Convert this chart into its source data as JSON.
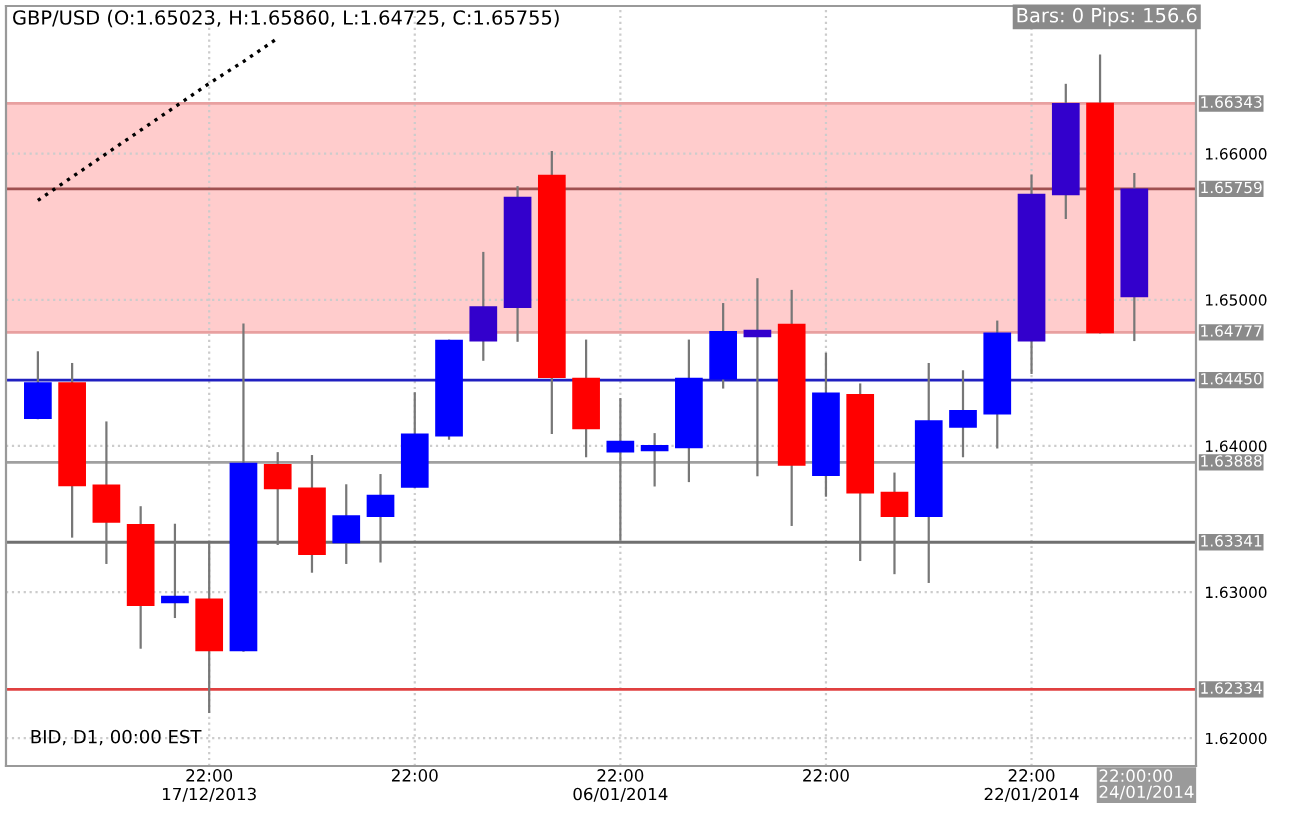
{
  "chart_data": {
    "type": "candlestick",
    "title": "GBP/USD (O:1.65023, H:1.65860, L:1.64725, C:1.65755)",
    "categories": [
      null,
      null,
      null,
      null,
      null,
      "22:00\n17/12/2013",
      null,
      null,
      null,
      null,
      null,
      "22:00",
      null,
      null,
      null,
      null,
      null,
      "22:00\n06/01/2014",
      null,
      null,
      null,
      null,
      null,
      "22:00",
      null,
      null,
      null,
      null,
      null,
      "22:00\n22/01/2014",
      null,
      null,
      null
    ],
    "ohlc": [
      [
        1.6419,
        1.6464,
        1.6419,
        1.6443
      ],
      [
        1.6443,
        1.6456,
        1.6338,
        1.6373
      ],
      [
        1.6373,
        1.6416,
        1.632,
        1.6348
      ],
      [
        1.6346,
        1.6358,
        1.6262,
        1.6291
      ],
      [
        1.6293,
        1.6346,
        1.6283,
        1.6297
      ],
      [
        1.6295,
        1.6333,
        1.6218,
        1.626
      ],
      [
        1.626,
        1.6483,
        1.626,
        1.6388
      ],
      [
        1.6387,
        1.6395,
        1.6333,
        1.6371
      ],
      [
        1.6371,
        1.6393,
        1.6314,
        1.6326
      ],
      [
        1.6334,
        1.6373,
        1.632,
        1.6352
      ],
      [
        1.6352,
        1.638,
        1.6321,
        1.6366
      ],
      [
        1.6372,
        1.6436,
        1.6372,
        1.6408
      ],
      [
        1.6407,
        1.6472,
        1.6405,
        1.6472
      ],
      [
        1.6472,
        1.6532,
        1.6459,
        1.6495
      ],
      [
        1.6495,
        1.6577,
        1.6472,
        1.657
      ],
      [
        1.6585,
        1.6601,
        1.6409,
        1.6447
      ],
      [
        1.6446,
        1.6472,
        1.6393,
        1.6412
      ],
      [
        1.6396,
        1.6432,
        1.6336,
        1.6403
      ],
      [
        1.6397,
        1.6408,
        1.6373,
        1.64
      ],
      [
        1.6399,
        1.6472,
        1.6376,
        1.6446
      ],
      [
        1.6446,
        1.6497,
        1.644,
        1.6478
      ],
      [
        1.6475,
        1.6514,
        1.638,
        1.6479
      ],
      [
        1.6483,
        1.6506,
        1.6346,
        1.6387
      ],
      [
        1.638,
        1.6463,
        1.6366,
        1.6436
      ],
      [
        1.6435,
        1.6442,
        1.6322,
        1.6368
      ],
      [
        1.6368,
        1.6381,
        1.6313,
        1.6352
      ],
      [
        1.6352,
        1.6456,
        1.6307,
        1.6417
      ],
      [
        1.6413,
        1.6451,
        1.6393,
        1.6424
      ],
      [
        1.6422,
        1.6485,
        1.6399,
        1.6477
      ],
      [
        1.6472,
        1.6585,
        1.645,
        1.6572
      ],
      [
        1.6572,
        1.6647,
        1.6556,
        1.6634
      ],
      [
        1.66343,
        1.6667,
        1.64777,
        1.64777
      ],
      [
        1.65023,
        1.6586,
        1.64725,
        1.65755
      ]
    ],
    "colors": [
      "#0000ff",
      "#ff0000",
      "#ff0000",
      "#ff0000",
      "#0000ff",
      "#ff0000",
      "#0000ff",
      "#ff0000",
      "#ff0000",
      "#0000ff",
      "#0000ff",
      "#0000ff",
      "#0000ff",
      "#3300cc",
      "#3300cc",
      "#ff0000",
      "#ff0000",
      "#0000ff",
      "#0000ff",
      "#0000ff",
      "#0000ff",
      "#3300cc",
      "#ff0000",
      "#0000ff",
      "#ff0000",
      "#ff0000",
      "#0000ff",
      "#0000ff",
      "#0000ff",
      "#3300cc",
      "#3300cc",
      "#ff0000",
      "#3300cc"
    ],
    "series": [
      {
        "type": "line",
        "values": [
          1.6568,
          1.6584,
          1.66,
          1.6616,
          1.6632,
          1.6648,
          1.6663,
          1.6679,
          null,
          null,
          null,
          null,
          null,
          null,
          null,
          null,
          null,
          null,
          null,
          null,
          null,
          null,
          null,
          null,
          null,
          null,
          null,
          null,
          null,
          null,
          null,
          null,
          null
        ],
        "color": "#000000",
        "line_style": "dotted"
      }
    ],
    "ylim": [
      1.6181,
      1.6701
    ],
    "yticks": [
      {
        "value": 1.62,
        "label": "1.62000"
      },
      {
        "value": 1.63,
        "label": "1.63000"
      },
      {
        "value": 1.64,
        "label": "1.64000"
      },
      {
        "value": 1.65,
        "label": "1.65000"
      },
      {
        "value": 1.66,
        "label": "1.66000"
      }
    ],
    "bands": [
      {
        "axis": "y",
        "from": 1.64777,
        "to": 1.66343,
        "color": "#ffcccc"
      }
    ],
    "ref_lines": [
      {
        "axis": "y",
        "value": 1.66343,
        "label": "1.66343",
        "color": "#e8a0a0"
      },
      {
        "axis": "y",
        "value": 1.65759,
        "label": "1.65759",
        "color": "#a05050"
      },
      {
        "axis": "y",
        "value": 1.64777,
        "label": "1.64777",
        "color": "#e8a0a0"
      },
      {
        "axis": "y",
        "value": 1.6445,
        "label": "1.64450",
        "color": "#2020c0"
      },
      {
        "axis": "y",
        "value": 1.63888,
        "label": "1.63888",
        "color": "#a0a0a0"
      },
      {
        "axis": "y",
        "value": 1.63341,
        "label": "1.63341",
        "color": "#707070"
      },
      {
        "axis": "y",
        "value": 1.62334,
        "label": "1.62334",
        "color": "#e04040"
      }
    ],
    "annotations": [
      "Bars: 0 Pips: 156.6",
      "BID, D1, 00:00 EST",
      "22:00:00\n24/01/2014"
    ],
    "grid": true,
    "legend": false
  }
}
